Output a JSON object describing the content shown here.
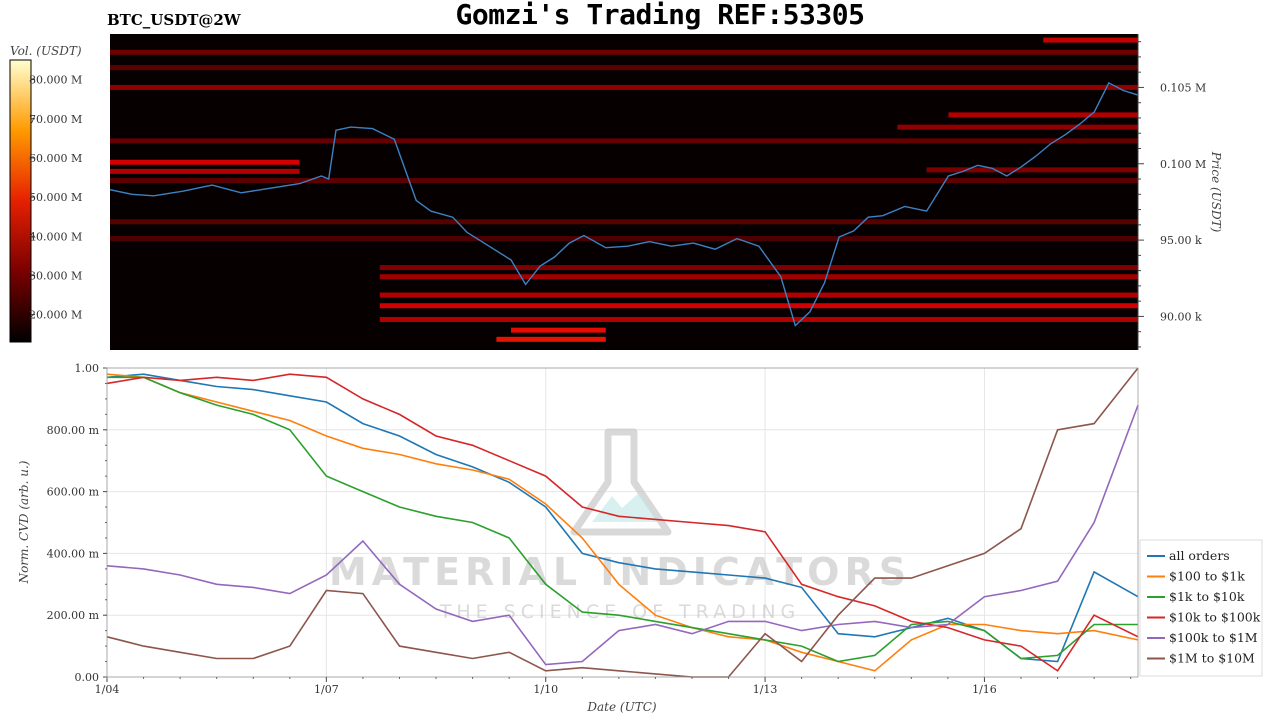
{
  "title": "Gomzi's Trading REF:53305",
  "symbol": "BTC_USDT@2W",
  "watermark": {
    "line1": "MATERIAL INDICATORS",
    "line2": "THE SCIENCE OF TRADING"
  },
  "colors": {
    "heat_low": "#080000",
    "heat_high": "#ff1a00",
    "price_line": "#3b82c4"
  },
  "chart_data": [
    {
      "type": "heatmap",
      "colorbar": {
        "label": "Vol. (USDT)",
        "ticks": [
          "80.000 M",
          "70.000 M",
          "60.000 M",
          "50.000 M",
          "40.000 M",
          "30.000 M",
          "20.000 M"
        ],
        "range": [
          13,
          85
        ]
      },
      "ylabel": "Price (USDT)",
      "ylim": [
        87.8,
        108.5
      ],
      "y_ticks": [
        {
          "v": 105,
          "label": "0.105 M"
        },
        {
          "v": 100,
          "label": "0.100 M"
        },
        {
          "v": 95,
          "label": "95.00 k"
        },
        {
          "v": 90,
          "label": "90.00 k"
        }
      ],
      "xlim": [
        0,
        14.1
      ],
      "price_series": {
        "name": "price",
        "x": [
          0,
          0.3,
          0.6,
          1,
          1.4,
          1.8,
          2.2,
          2.6,
          2.9,
          3,
          3.1,
          3.3,
          3.6,
          3.9,
          4.2,
          4.4,
          4.7,
          4.9,
          5.2,
          5.5,
          5.7,
          5.9,
          6.1,
          6.3,
          6.5,
          6.8,
          7.1,
          7.4,
          7.7,
          8,
          8.3,
          8.6,
          8.9,
          9.2,
          9.4,
          9.6,
          9.8,
          10,
          10.2,
          10.4,
          10.6,
          10.9,
          11.2,
          11.5,
          11.7,
          11.9,
          12.1,
          12.3,
          12.5,
          12.7,
          12.9,
          13.1,
          13.3,
          13.5,
          13.7,
          13.9,
          14.1
        ],
        "y": [
          98.3,
          98,
          97.9,
          98.2,
          98.6,
          98.1,
          98.4,
          98.7,
          99.2,
          99,
          102.2,
          102.4,
          102.3,
          101.6,
          97.6,
          96.9,
          96.5,
          95.5,
          94.6,
          93.7,
          92.1,
          93.3,
          93.9,
          94.8,
          95.3,
          94.5,
          94.6,
          94.9,
          94.6,
          94.8,
          94.4,
          95.1,
          94.6,
          92.6,
          89.4,
          90.3,
          92.2,
          95.2,
          95.6,
          96.5,
          96.6,
          97.2,
          96.9,
          99.2,
          99.5,
          99.9,
          99.7,
          99.2,
          99.8,
          100.5,
          101.3,
          101.9,
          102.6,
          103.4,
          105.3,
          104.8,
          104.5
        ]
      },
      "heat_bands": [
        {
          "y": 108.1,
          "v": 60,
          "x0": 12.8,
          "x1": 14.1
        },
        {
          "y": 107.3,
          "v": 35,
          "x0": 0,
          "x1": 14.1
        },
        {
          "y": 106.3,
          "v": 30,
          "x0": 0,
          "x1": 14.1
        },
        {
          "y": 105,
          "v": 45,
          "x0": 0,
          "x1": 14.1
        },
        {
          "y": 103.2,
          "v": 55,
          "x0": 11.5,
          "x1": 14.1
        },
        {
          "y": 102.4,
          "v": 45,
          "x0": 10.8,
          "x1": 14.1
        },
        {
          "y": 101.5,
          "v": 32,
          "x0": 0,
          "x1": 14.1
        },
        {
          "y": 100.1,
          "v": 65,
          "x0": 0,
          "x1": 2.6
        },
        {
          "y": 99.5,
          "v": 55,
          "x0": 0,
          "x1": 2.6
        },
        {
          "y": 99.6,
          "v": 40,
          "x0": 11.2,
          "x1": 14.1
        },
        {
          "y": 98.9,
          "v": 30,
          "x0": 0,
          "x1": 14.1
        },
        {
          "y": 96.2,
          "v": 28,
          "x0": 0,
          "x1": 14.1
        },
        {
          "y": 95.1,
          "v": 25,
          "x0": 0,
          "x1": 14.1
        },
        {
          "y": 93.2,
          "v": 40,
          "x0": 3.7,
          "x1": 14.1
        },
        {
          "y": 92.6,
          "v": 50,
          "x0": 3.7,
          "x1": 14.1
        },
        {
          "y": 91.4,
          "v": 55,
          "x0": 3.7,
          "x1": 14.1
        },
        {
          "y": 90.7,
          "v": 65,
          "x0": 3.7,
          "x1": 14.1
        },
        {
          "y": 89.8,
          "v": 55,
          "x0": 3.7,
          "x1": 14.1
        },
        {
          "y": 89.1,
          "v": 75,
          "x0": 5.5,
          "x1": 6.8
        },
        {
          "y": 88.5,
          "v": 78,
          "x0": 5.3,
          "x1": 6.8
        }
      ]
    },
    {
      "type": "line",
      "xlabel": "Date (UTC)",
      "ylabel": "Norm. CVD (arb. u.)",
      "ylim": [
        0,
        1
      ],
      "xlim": [
        0,
        14.1
      ],
      "x_ticks": [
        {
          "v": 0,
          "label": "1/04"
        },
        {
          "v": 3,
          "label": "1/07"
        },
        {
          "v": 6,
          "label": "1/10"
        },
        {
          "v": 9,
          "label": "1/13"
        },
        {
          "v": 12,
          "label": "1/16"
        }
      ],
      "y_ticks": [
        {
          "v": 1,
          "label": "1.00"
        },
        {
          "v": 0.8,
          "label": "800.00 m"
        },
        {
          "v": 0.6,
          "label": "600.00 m"
        },
        {
          "v": 0.4,
          "label": "400.00 m"
        },
        {
          "v": 0.2,
          "label": "200.00 m"
        },
        {
          "v": 0,
          "label": "0.00"
        }
      ],
      "x": [
        0,
        0.5,
        1,
        1.5,
        2,
        2.5,
        3,
        3.5,
        4,
        4.5,
        5,
        5.5,
        6,
        6.5,
        7,
        7.5,
        8,
        8.5,
        9,
        9.5,
        10,
        10.5,
        11,
        11.5,
        12,
        12.5,
        13,
        13.5,
        14.1
      ],
      "series": [
        {
          "name": "all orders",
          "color": "#1f77b4",
          "values": [
            0.97,
            0.98,
            0.96,
            0.94,
            0.93,
            0.91,
            0.89,
            0.82,
            0.78,
            0.72,
            0.68,
            0.63,
            0.55,
            0.4,
            0.37,
            0.35,
            0.34,
            0.33,
            0.32,
            0.29,
            0.14,
            0.13,
            0.16,
            0.19,
            0.15,
            0.06,
            0.05,
            0.34,
            0.26
          ]
        },
        {
          "name": "$100 to $1k",
          "color": "#ff7f0e",
          "values": [
            0.98,
            0.97,
            0.92,
            0.89,
            0.86,
            0.83,
            0.78,
            0.74,
            0.72,
            0.69,
            0.67,
            0.64,
            0.56,
            0.45,
            0.3,
            0.2,
            0.16,
            0.13,
            0.12,
            0.08,
            0.05,
            0.02,
            0.12,
            0.17,
            0.17,
            0.15,
            0.14,
            0.15,
            0.12
          ]
        },
        {
          "name": "$1k to $10k",
          "color": "#2ca02c",
          "values": [
            0.97,
            0.97,
            0.92,
            0.88,
            0.85,
            0.8,
            0.65,
            0.6,
            0.55,
            0.52,
            0.5,
            0.45,
            0.3,
            0.21,
            0.2,
            0.18,
            0.16,
            0.14,
            0.12,
            0.1,
            0.05,
            0.07,
            0.17,
            0.18,
            0.15,
            0.06,
            0.07,
            0.17,
            0.17
          ]
        },
        {
          "name": "$10k to $100k",
          "color": "#d62728",
          "values": [
            0.95,
            0.97,
            0.96,
            0.97,
            0.96,
            0.98,
            0.97,
            0.9,
            0.85,
            0.78,
            0.75,
            0.7,
            0.65,
            0.55,
            0.52,
            0.51,
            0.5,
            0.49,
            0.47,
            0.3,
            0.26,
            0.23,
            0.18,
            0.16,
            0.12,
            0.1,
            0.02,
            0.2,
            0.13
          ]
        },
        {
          "name": "$100k to $1M",
          "color": "#9467bd",
          "values": [
            0.36,
            0.35,
            0.33,
            0.3,
            0.29,
            0.27,
            0.33,
            0.44,
            0.3,
            0.22,
            0.18,
            0.2,
            0.04,
            0.05,
            0.15,
            0.17,
            0.14,
            0.18,
            0.18,
            0.15,
            0.17,
            0.18,
            0.16,
            0.17,
            0.26,
            0.28,
            0.31,
            0.5,
            0.88
          ]
        },
        {
          "name": "$1M to $10M",
          "color": "#8c564b",
          "values": [
            0.13,
            0.1,
            0.08,
            0.06,
            0.06,
            0.1,
            0.28,
            0.27,
            0.1,
            0.08,
            0.06,
            0.08,
            0.02,
            0.03,
            0.02,
            0.01,
            0.0,
            0.0,
            0.14,
            0.05,
            0.2,
            0.32,
            0.32,
            0.36,
            0.4,
            0.48,
            0.8,
            0.82,
            1.0
          ]
        }
      ]
    }
  ]
}
